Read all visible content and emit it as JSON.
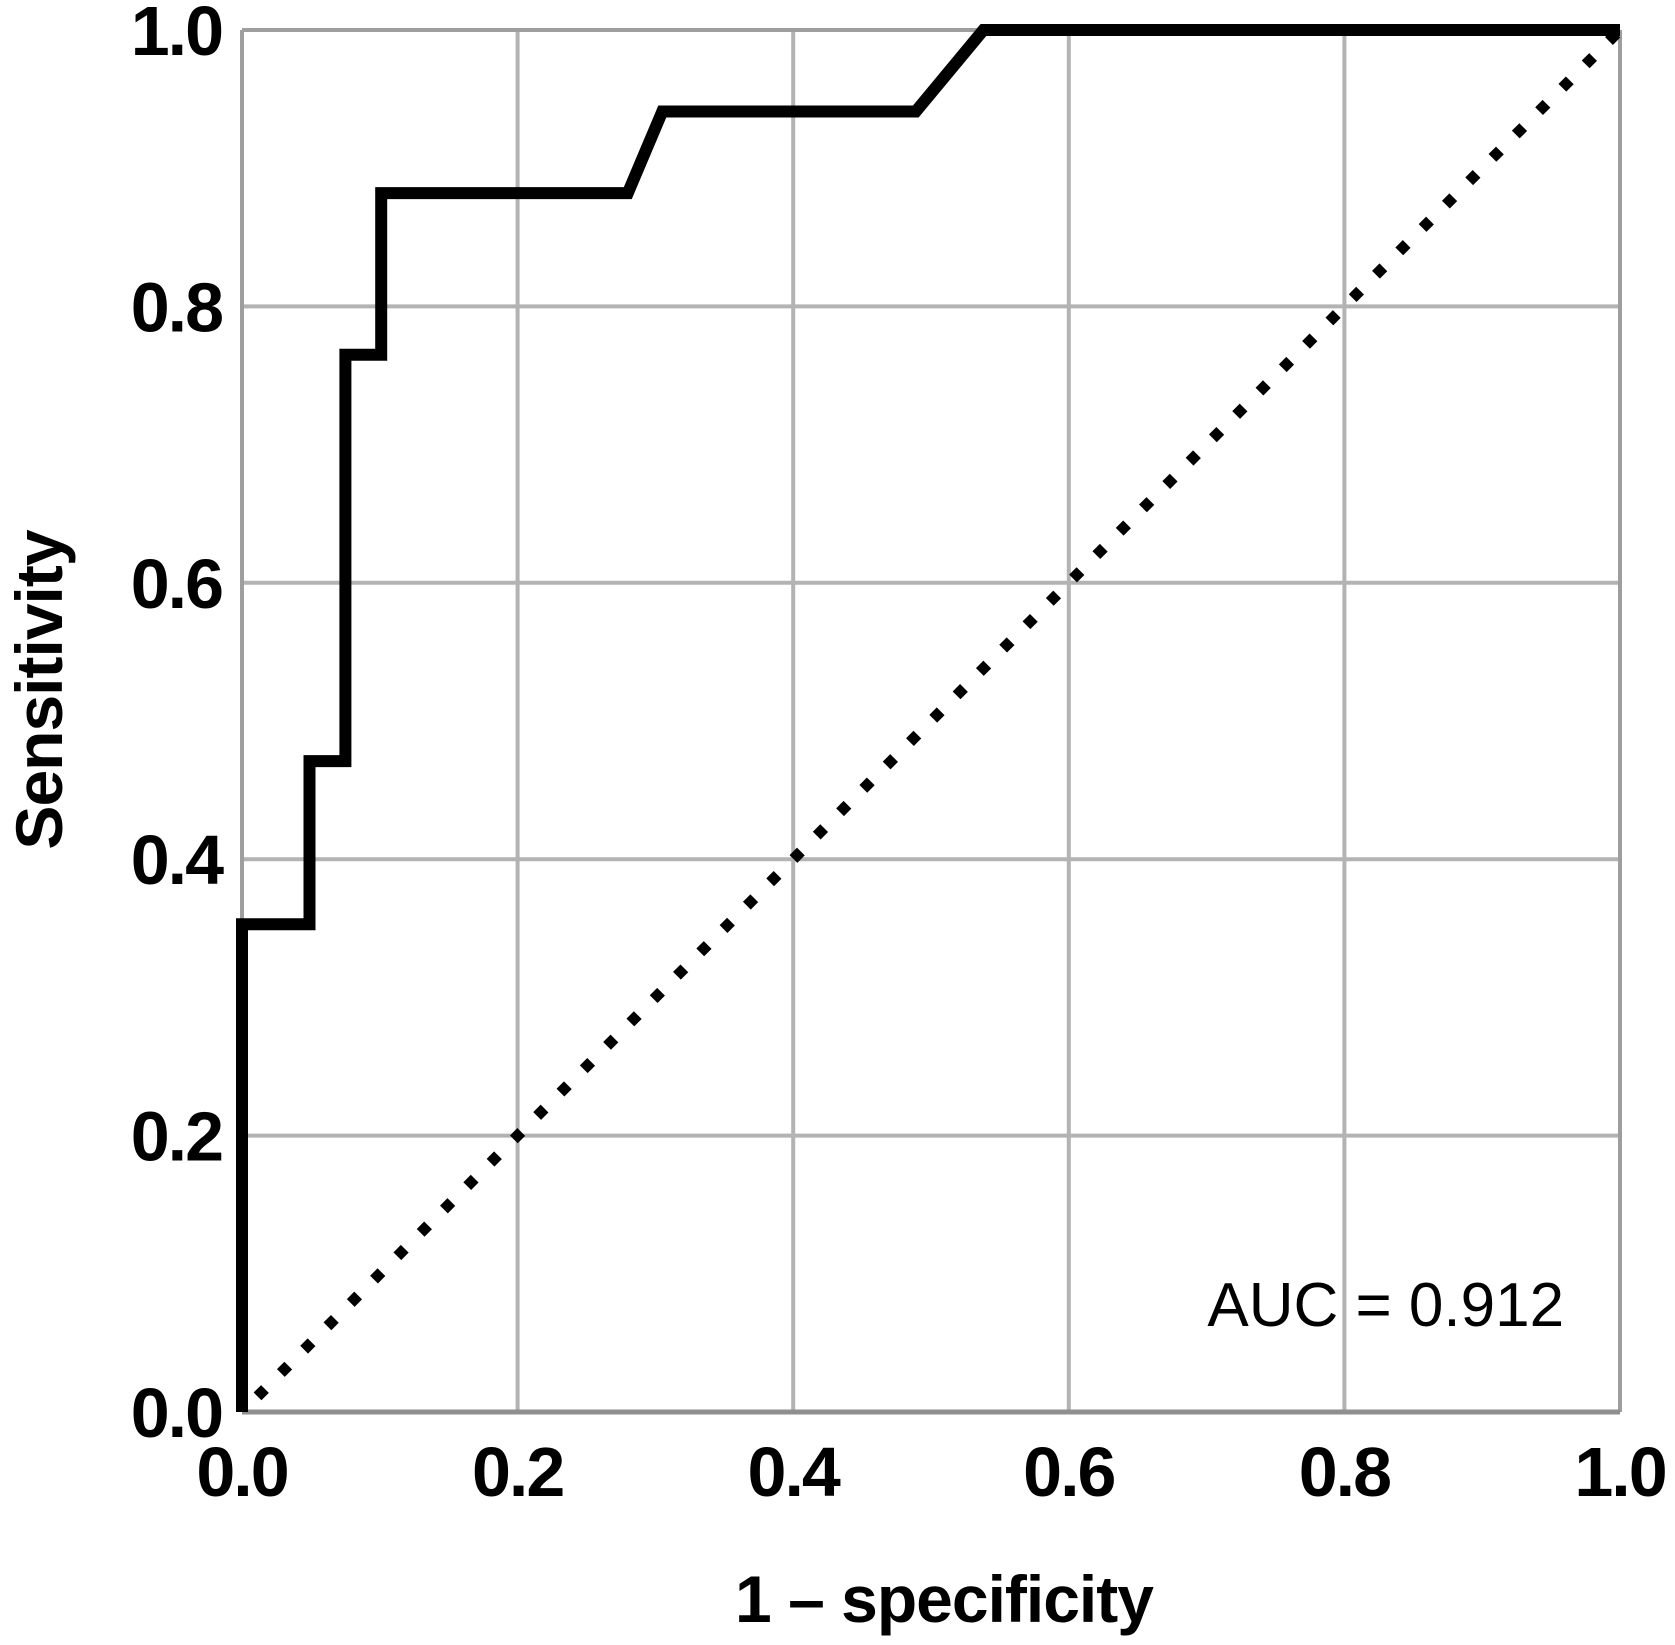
{
  "chart_data": {
    "type": "line",
    "subtype": "roc_curve",
    "title": "",
    "xlabel": "1 – specificity",
    "ylabel": "Sensitivity",
    "xlim": [
      0.0,
      1.0
    ],
    "ylim": [
      0.0,
      1.0
    ],
    "x_ticks": [
      0.0,
      0.2,
      0.4,
      0.6,
      0.8,
      1.0
    ],
    "y_ticks": [
      0.0,
      0.2,
      0.4,
      0.6,
      0.8,
      1.0
    ],
    "tick_decimals": 1,
    "grid": "on",
    "legend": "none",
    "annotations": [
      {
        "key": "auc",
        "text": "AUC = 0.912",
        "value": 0.912,
        "x": 0.83,
        "y": 0.078
      }
    ],
    "series": [
      {
        "key": "roc-curve",
        "name": "ROC curve",
        "style": "solid",
        "color": "#000000",
        "line_width": 12,
        "points": [
          [
            0.0,
            0.0
          ],
          [
            0.0,
            0.353
          ],
          [
            0.049,
            0.353
          ],
          [
            0.049,
            0.471
          ],
          [
            0.075,
            0.471
          ],
          [
            0.075,
            0.765
          ],
          [
            0.101,
            0.765
          ],
          [
            0.101,
            0.882
          ],
          [
            0.28,
            0.882
          ],
          [
            0.305,
            0.941
          ],
          [
            0.489,
            0.941
          ],
          [
            0.538,
            1.0
          ],
          [
            1.0,
            1.0
          ]
        ]
      },
      {
        "key": "reference-diagonal",
        "name": "Chance reference line",
        "style": "dotted",
        "color": "#000000",
        "line_width": 11,
        "points": [
          [
            0.0,
            0.0
          ],
          [
            1.0,
            1.0
          ]
        ]
      }
    ]
  },
  "colors": {
    "background": "#ffffff",
    "grid_line": "#b3b3b3",
    "frame": "#9e9e9e",
    "axis_bottom": "#8f8f8f",
    "curve": "#000000",
    "text": "#000000"
  }
}
